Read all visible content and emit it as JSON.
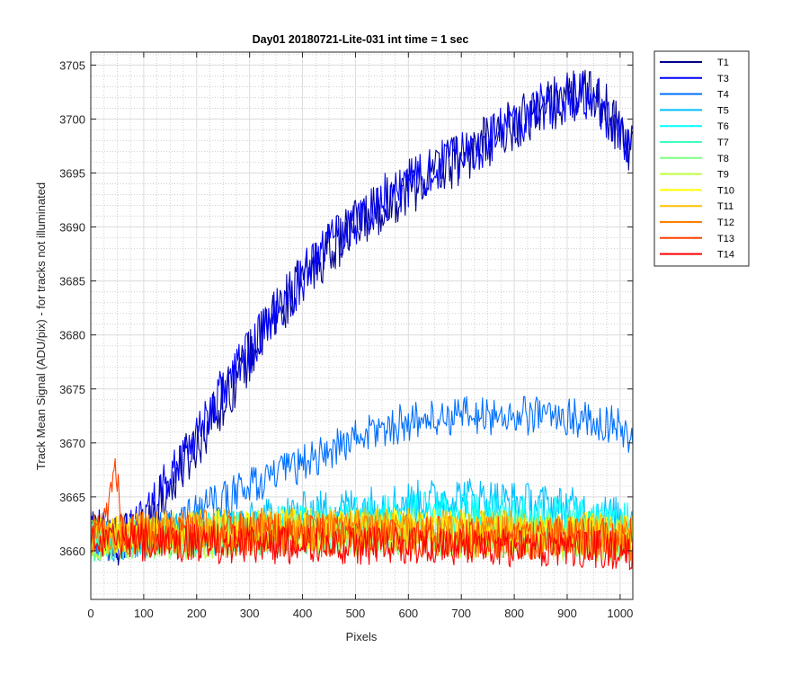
{
  "chart_data": {
    "type": "line",
    "title": "Day01 20180721-Lite-031 int time = 1 sec",
    "xlabel": "Pixels",
    "ylabel": "Track Mean Signal (ADU/pix) - for tracks not illuminated",
    "xlim": [
      0,
      1024
    ],
    "ylim": [
      3655.5,
      3706.2
    ],
    "xticks": [
      0,
      100,
      200,
      300,
      400,
      500,
      600,
      700,
      800,
      900,
      1000
    ],
    "yticks": [
      3660,
      3665,
      3670,
      3675,
      3680,
      3685,
      3690,
      3695,
      3700,
      3705
    ],
    "x_minor_step": 25,
    "y_minor_step": 1,
    "grid": true,
    "minor_grid": true,
    "legend_position": "outside-right",
    "series": [
      {
        "name": "T1",
        "color": "#00008F",
        "noise": 2.5,
        "points": [
          [
            0,
            3662
          ],
          [
            50,
            3661
          ],
          [
            90,
            3661.5
          ],
          [
            150,
            3666
          ],
          [
            250,
            3674
          ],
          [
            350,
            3682
          ],
          [
            450,
            3688
          ],
          [
            550,
            3692
          ],
          [
            650,
            3695
          ],
          [
            750,
            3698
          ],
          [
            850,
            3701
          ],
          [
            900,
            3702
          ],
          [
            950,
            3702.5
          ],
          [
            1000,
            3699
          ],
          [
            1024,
            3697
          ]
        ]
      },
      {
        "name": "T3",
        "color": "#0000FF",
        "noise": 2.3,
        "points": [
          [
            0,
            3662
          ],
          [
            50,
            3661
          ],
          [
            90,
            3662
          ],
          [
            150,
            3667
          ],
          [
            250,
            3675
          ],
          [
            350,
            3682
          ],
          [
            450,
            3688.5
          ],
          [
            550,
            3692.5
          ],
          [
            650,
            3695.5
          ],
          [
            750,
            3698
          ],
          [
            850,
            3701
          ],
          [
            900,
            3702
          ],
          [
            950,
            3702
          ],
          [
            1000,
            3699
          ],
          [
            1024,
            3697
          ]
        ]
      },
      {
        "name": "T4",
        "color": "#0070FF",
        "noise": 1.8,
        "points": [
          [
            0,
            3661
          ],
          [
            100,
            3661
          ],
          [
            200,
            3663.5
          ],
          [
            300,
            3666
          ],
          [
            400,
            3668
          ],
          [
            500,
            3670.5
          ],
          [
            600,
            3672
          ],
          [
            700,
            3672.5
          ],
          [
            800,
            3672.5
          ],
          [
            900,
            3672.5
          ],
          [
            1000,
            3671.5
          ],
          [
            1024,
            3670
          ]
        ]
      },
      {
        "name": "T5",
        "color": "#00BFFF",
        "noise": 2.0,
        "points": [
          [
            0,
            3661
          ],
          [
            100,
            3661
          ],
          [
            200,
            3662
          ],
          [
            300,
            3662.5
          ],
          [
            400,
            3663.5
          ],
          [
            500,
            3664
          ],
          [
            600,
            3664.5
          ],
          [
            700,
            3665
          ],
          [
            800,
            3664.5
          ],
          [
            900,
            3664
          ],
          [
            1000,
            3663
          ],
          [
            1024,
            3663
          ]
        ]
      },
      {
        "name": "T6",
        "color": "#00FFFF",
        "noise": 2.0,
        "points": [
          [
            0,
            3661
          ],
          [
            200,
            3661.5
          ],
          [
            400,
            3662.5
          ],
          [
            600,
            3663.5
          ],
          [
            800,
            3663.5
          ],
          [
            1024,
            3662.5
          ]
        ]
      },
      {
        "name": "T7",
        "color": "#40FFBF",
        "noise": 2.0,
        "points": [
          [
            0,
            3661
          ],
          [
            300,
            3661.5
          ],
          [
            600,
            3662
          ],
          [
            800,
            3662
          ],
          [
            1024,
            3661.5
          ]
        ]
      },
      {
        "name": "T8",
        "color": "#80FF80",
        "noise": 2.0,
        "points": [
          [
            0,
            3661
          ],
          [
            300,
            3661.5
          ],
          [
            600,
            3661.5
          ],
          [
            1024,
            3661
          ]
        ]
      },
      {
        "name": "T9",
        "color": "#BFFF40",
        "noise": 2.0,
        "points": [
          [
            0,
            3661
          ],
          [
            400,
            3661.5
          ],
          [
            1024,
            3661
          ]
        ]
      },
      {
        "name": "T10",
        "color": "#FFFF00",
        "noise": 2.0,
        "points": [
          [
            0,
            3661.5
          ],
          [
            300,
            3662
          ],
          [
            600,
            3662
          ],
          [
            1024,
            3661.5
          ]
        ]
      },
      {
        "name": "T11",
        "color": "#FFBF00",
        "noise": 2.0,
        "points": [
          [
            0,
            3661.5
          ],
          [
            300,
            3662
          ],
          [
            600,
            3662
          ],
          [
            1024,
            3661.5
          ]
        ]
      },
      {
        "name": "T12",
        "color": "#FF8000",
        "noise": 2.0,
        "points": [
          [
            0,
            3661.5
          ],
          [
            300,
            3662
          ],
          [
            600,
            3661.5
          ],
          [
            1024,
            3661
          ]
        ]
      },
      {
        "name": "T13",
        "color": "#FF4000",
        "noise": 2.0,
        "points": [
          [
            0,
            3661.5
          ],
          [
            30,
            3663
          ],
          [
            45,
            3669.5
          ],
          [
            55,
            3664
          ],
          [
            70,
            3661.5
          ],
          [
            300,
            3661.5
          ],
          [
            1024,
            3661
          ]
        ]
      },
      {
        "name": "T14",
        "color": "#FF0000",
        "noise": 1.8,
        "points": [
          [
            0,
            3661
          ],
          [
            300,
            3660.5
          ],
          [
            600,
            3660.5
          ],
          [
            1024,
            3660
          ]
        ]
      }
    ]
  }
}
